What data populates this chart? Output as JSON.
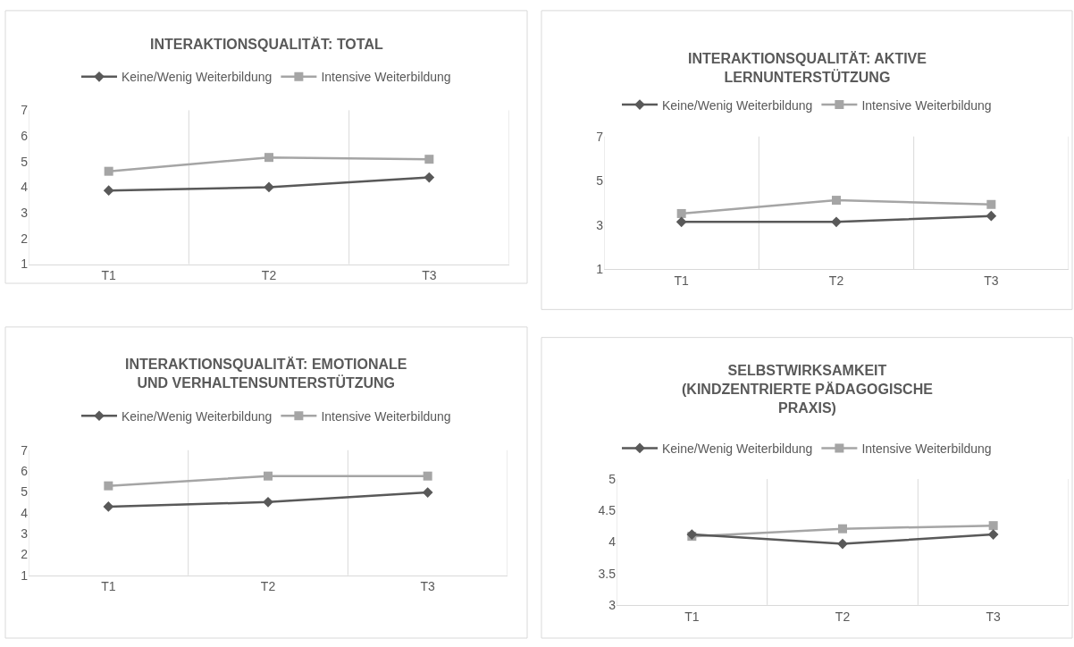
{
  "chart_data": [
    {
      "type": "line",
      "title": "INTERAKTIONSQUALITÄT: TOTAL",
      "categories": [
        "T1",
        "T2",
        "T3"
      ],
      "ylim": [
        1,
        7
      ],
      "yticks": [
        1,
        2,
        3,
        4,
        5,
        6,
        7
      ],
      "grid": "x",
      "legend": "top",
      "series": [
        {
          "name": "Keine/Wenig Weiterbildung",
          "color": "#595959",
          "marker": "diamond",
          "values": [
            3.87,
            4.0,
            4.38
          ]
        },
        {
          "name": "Intensive Weiterbildung",
          "color": "#a5a5a5",
          "marker": "square",
          "values": [
            4.62,
            5.16,
            5.09
          ]
        }
      ]
    },
    {
      "type": "line",
      "title": "INTERAKTIONSQUALITÄT: AKTIVE LERNUNTERSTÜTZUNG",
      "categories": [
        "T1",
        "T2",
        "T3"
      ],
      "ylim": [
        1,
        7
      ],
      "yticks": [
        1,
        3,
        5,
        7
      ],
      "grid": "x",
      "legend": "top",
      "series": [
        {
          "name": "Keine/Wenig Weiterbildung",
          "color": "#595959",
          "marker": "diamond",
          "values": [
            3.14,
            3.14,
            3.41
          ]
        },
        {
          "name": "Intensive Weiterbildung",
          "color": "#a5a5a5",
          "marker": "square",
          "values": [
            3.52,
            4.12,
            3.93
          ]
        }
      ]
    },
    {
      "type": "line",
      "title": "INTERAKTIONSQUALITÄT: EMOTIONALE UND VERHALTENSUNTERSTÜTZUNG",
      "categories": [
        "T1",
        "T2",
        "T3"
      ],
      "ylim": [
        1,
        7
      ],
      "yticks": [
        1,
        2,
        3,
        4,
        5,
        6,
        7
      ],
      "grid": "x",
      "legend": "top",
      "series": [
        {
          "name": "Keine/Wenig Weiterbildung",
          "color": "#595959",
          "marker": "diamond",
          "values": [
            4.29,
            4.51,
            4.97
          ]
        },
        {
          "name": "Intensive Weiterbildung",
          "color": "#a5a5a5",
          "marker": "square",
          "values": [
            5.29,
            5.76,
            5.76
          ]
        }
      ]
    },
    {
      "type": "line",
      "title": "SELBSTWIRKSAMKEIT (KINDZENTRIERTE PÄDAGOGISCHE PRAXIS)",
      "categories": [
        "T1",
        "T2",
        "T3"
      ],
      "ylim": [
        3,
        5
      ],
      "yticks": [
        3,
        3.5,
        4,
        4.5,
        5
      ],
      "grid": "x",
      "legend": "top",
      "series": [
        {
          "name": "Keine/Wenig Weiterbildung",
          "color": "#595959",
          "marker": "diamond",
          "values": [
            4.12,
            3.97,
            4.12
          ]
        },
        {
          "name": "Intensive Weiterbildung",
          "color": "#a5a5a5",
          "marker": "square",
          "values": [
            4.09,
            4.21,
            4.26
          ]
        }
      ]
    }
  ]
}
